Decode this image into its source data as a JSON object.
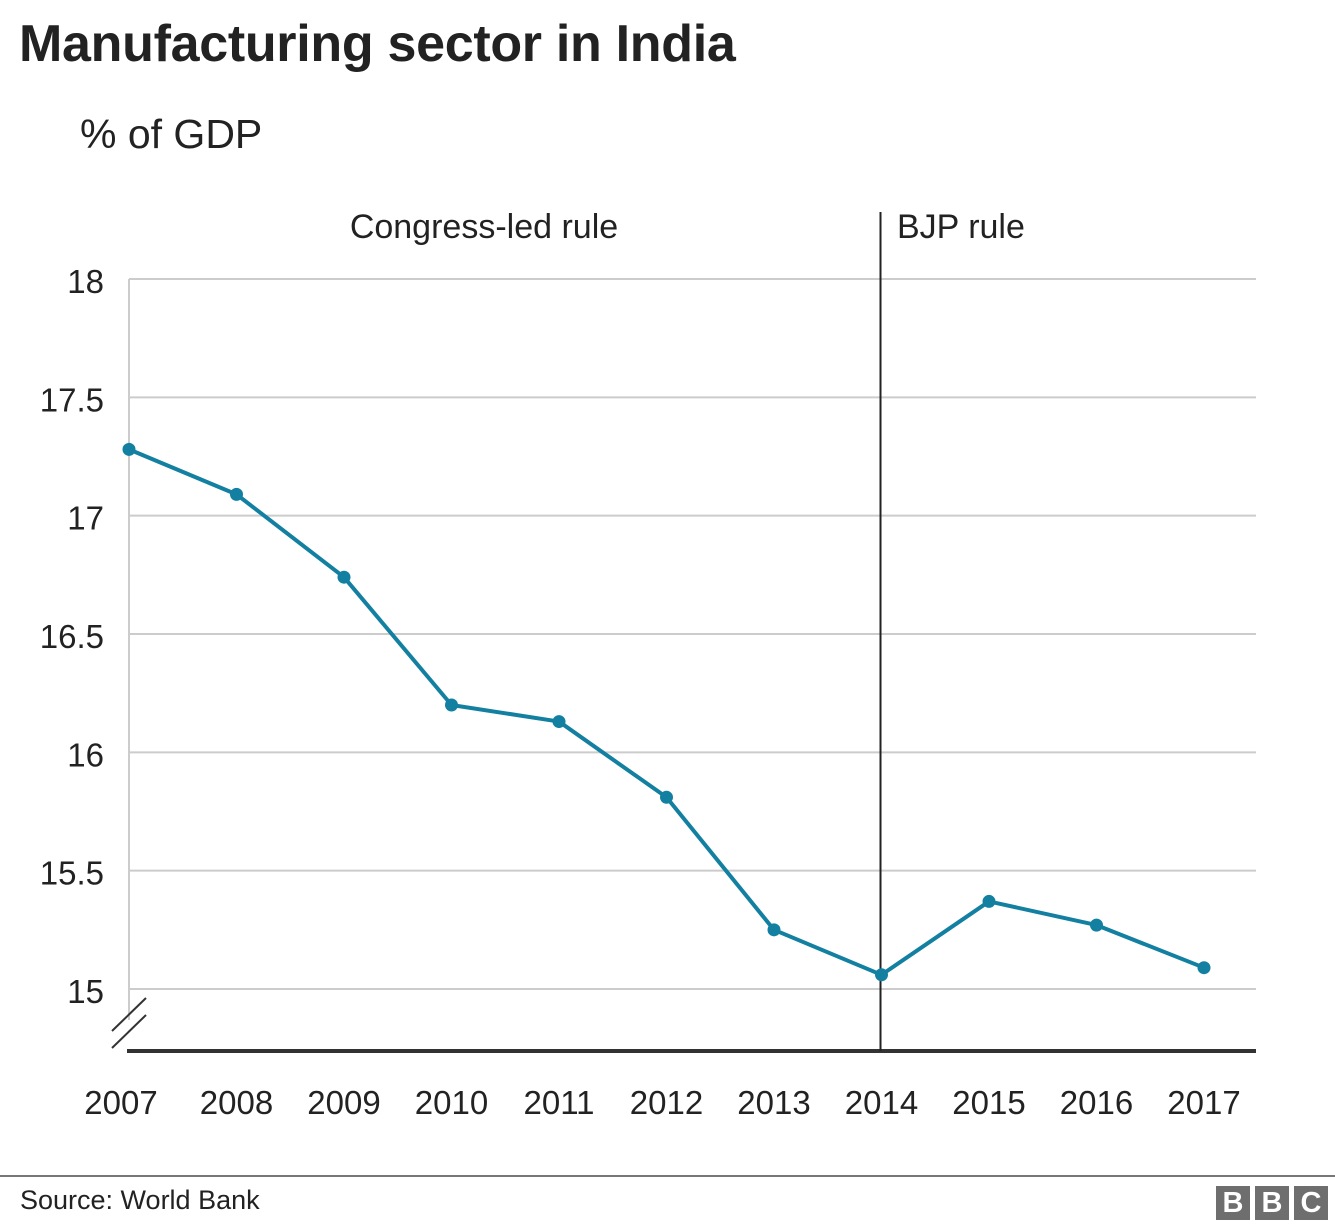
{
  "header": {
    "title": "Manufacturing sector in India",
    "subtitle": "% of GDP"
  },
  "chart_data": {
    "type": "line",
    "title": "Manufacturing sector in India",
    "ylabel": "% of GDP",
    "xlabel": "",
    "categories": [
      "2007",
      "2008",
      "2009",
      "2010",
      "2011",
      "2012",
      "2013",
      "2014",
      "2015",
      "2016",
      "2017"
    ],
    "series": [
      {
        "name": "Manufacturing, % of GDP",
        "color": "#1380A1",
        "values": [
          17.28,
          17.09,
          16.74,
          16.2,
          16.13,
          15.81,
          15.25,
          15.06,
          15.37,
          15.27,
          15.09
        ]
      }
    ],
    "ylim": [
      14.74,
      18
    ],
    "yticks": [
      18,
      17.5,
      17,
      16.5,
      16,
      15.5,
      15
    ],
    "ytick_labels": [
      "18",
      "17.5",
      "17",
      "16.5",
      "16",
      "15.5",
      "15"
    ],
    "axis_break": true,
    "grid": true,
    "annotations": [
      {
        "type": "vline",
        "x": "2014",
        "color": "#222222"
      },
      {
        "type": "label",
        "text": "Congress-led rule",
        "period": "2007-2014"
      },
      {
        "type": "label",
        "text": "BJP rule",
        "period": "2014-2017"
      }
    ],
    "colors": {
      "grid": "#cccccc",
      "axis": "#333333",
      "text": "#222222"
    }
  },
  "footer": {
    "source": "Source: World Bank",
    "logo_letters": [
      "B",
      "B",
      "C"
    ],
    "logo_color": "#6e6e6e"
  }
}
